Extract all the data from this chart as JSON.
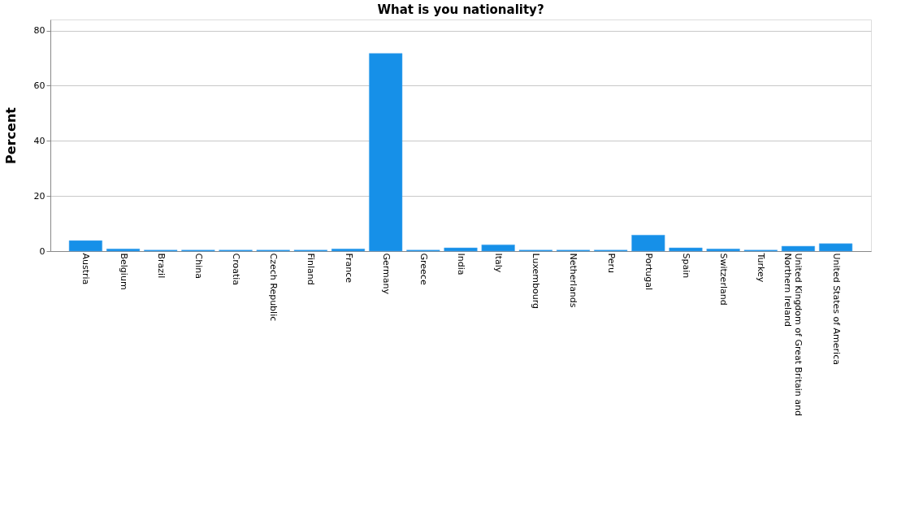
{
  "chart_data": {
    "type": "bar",
    "title": "What is you nationality?",
    "ylabel": "Percent",
    "categories": [
      "Austria",
      "Belgium",
      "Brazil",
      "China",
      "Croatia",
      "Czech Republic",
      "Finland",
      "France",
      "Germany",
      "Greece",
      "India",
      "Italy",
      "Luxembourg",
      "Netherlands",
      "Peru",
      "Portugal",
      "Spain",
      "Switzerland",
      "Turkey",
      "United Kingdom of Great Britain and Northern Ireland",
      "United States of America"
    ],
    "values": [
      3.8,
      0.8,
      0.4,
      0.4,
      0.4,
      0.4,
      0.4,
      0.8,
      71.7,
      0.4,
      1.2,
      2.3,
      0.4,
      0.4,
      0.4,
      5.8,
      1.2,
      0.8,
      0.4,
      1.8,
      2.7
    ],
    "color": "#1690e8",
    "ylim": [
      0,
      84
    ],
    "yticks": [
      0,
      20,
      40,
      60,
      80
    ],
    "grid": "y"
  }
}
